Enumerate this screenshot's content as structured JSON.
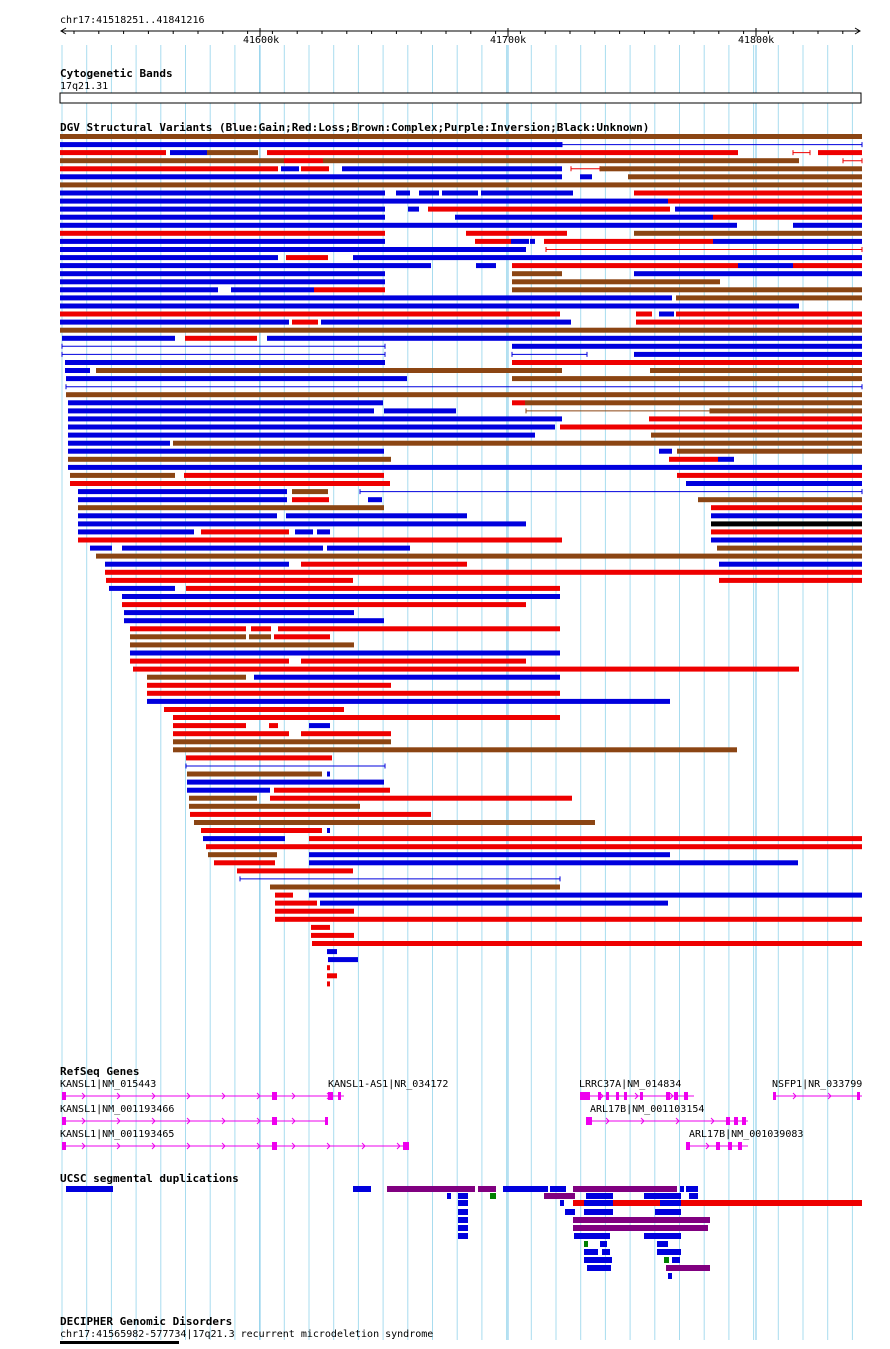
{
  "ruler": {
    "position_label": "chr17:41518251..41841216",
    "ticks": [
      "41600k",
      "41700k",
      "41800k"
    ]
  },
  "cytoband": {
    "title": "Cytogenetic Bands",
    "band": "17q21.31"
  },
  "dgv": {
    "title": "DGV Structural Variants (Blue:Gain;Red:Loss;Brown:Complex;Purple:Inversion;Black:Unknown)",
    "colors": {
      "gain": "#0000dd",
      "loss": "#ee0000",
      "complex": "#8b4513",
      "inversion": "#800080",
      "unknown": "#000000"
    }
  },
  "refseq": {
    "title": "RefSeq Genes",
    "gene_color": "#ee00ee",
    "genes": [
      {
        "label": "KANSL1|NM_015443"
      },
      {
        "label": "KANSL1-AS1|NR_034172"
      },
      {
        "label": "LRRC37A|NM_014834"
      },
      {
        "label": "NSFP1|NR_033799"
      },
      {
        "label": "KANSL1|NM_001193466"
      },
      {
        "label": "ARL17B|NM_001103154"
      },
      {
        "label": "KANSL1|NM_001193465"
      },
      {
        "label": "ARL17B|NM_001039083"
      }
    ]
  },
  "segdup": {
    "title": "UCSC segmental duplications",
    "colors": {
      "blue": "#0000dd",
      "red": "#ee0000",
      "purple": "#800080",
      "green": "#008000"
    }
  },
  "decipher": {
    "title": "DECIPHER Genomic Disorders",
    "feature": "chr17:41565982-577734|17q21.3 recurrent microdeletion syndrome"
  }
}
